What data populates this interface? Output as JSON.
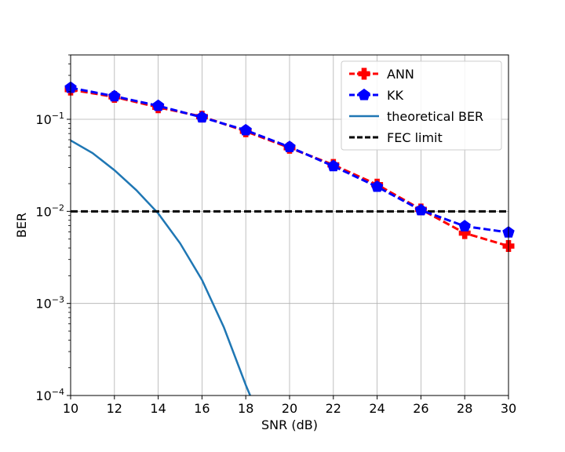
{
  "chart_data": {
    "type": "line",
    "xlabel": "SNR (dB)",
    "ylabel": "BER",
    "xlim": [
      10,
      30
    ],
    "ylim": [
      0.0001,
      0.5
    ],
    "yscale": "log",
    "grid": true,
    "legend_position": "top-right",
    "x_ticks": [
      "10",
      "12",
      "14",
      "16",
      "18",
      "20",
      "22",
      "24",
      "26",
      "28",
      "30"
    ],
    "y_ticks": [
      {
        "value": 0.0001,
        "base": "10",
        "exp": "−4"
      },
      {
        "value": 0.001,
        "base": "10",
        "exp": "−3"
      },
      {
        "value": 0.01,
        "base": "10",
        "exp": "−2"
      },
      {
        "value": 0.1,
        "base": "10",
        "exp": "−1"
      }
    ],
    "series": [
      {
        "name": "ANN",
        "color": "#ff0000",
        "style": "dashed",
        "marker": "plus",
        "x": [
          10,
          12,
          14,
          16,
          18,
          20,
          22,
          24,
          26,
          28,
          30
        ],
        "y": [
          0.21,
          0.175,
          0.135,
          0.107,
          0.074,
          0.049,
          0.032,
          0.0195,
          0.0105,
          0.0058,
          0.0042
        ]
      },
      {
        "name": "KK",
        "color": "#0000ff",
        "style": "dashed",
        "marker": "pentagon",
        "x": [
          10,
          12,
          14,
          16,
          18,
          20,
          22,
          24,
          26,
          28,
          30
        ],
        "y": [
          0.22,
          0.178,
          0.14,
          0.105,
          0.076,
          0.05,
          0.031,
          0.0185,
          0.0103,
          0.0069,
          0.0059
        ]
      },
      {
        "name": "theoretical BER",
        "color": "#1f77b4",
        "style": "solid",
        "marker": "none",
        "x": [
          10,
          11,
          12,
          13,
          14,
          15,
          16,
          17,
          18,
          18.2
        ],
        "y": [
          0.059,
          0.043,
          0.028,
          0.017,
          0.0095,
          0.0045,
          0.0018,
          0.00055,
          0.00013,
          0.0001
        ]
      },
      {
        "name": "FEC limit",
        "color": "#000000",
        "style": "dashed",
        "marker": "none",
        "x": [
          10,
          30
        ],
        "y": [
          0.01,
          0.01
        ]
      }
    ]
  }
}
